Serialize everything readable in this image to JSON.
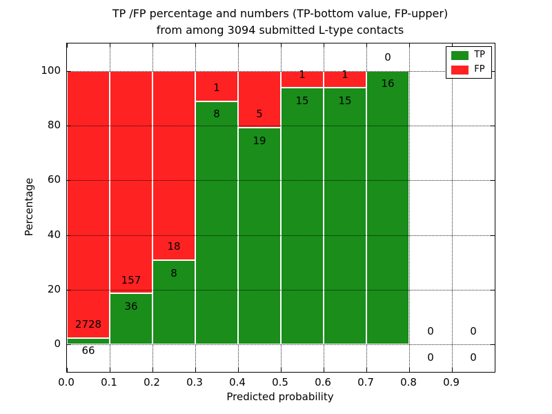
{
  "chart_data": {
    "type": "bar",
    "stacked": true,
    "title_lines": [
      "TP /FP percentage and numbers (TP-bottom value, FP-upper)",
      "from among 3094 submitted L-type contacts"
    ],
    "total_submitted": 3094,
    "xlabel": "Predicted probability",
    "ylabel": "Percentage",
    "bins": [
      0.0,
      0.1,
      0.2,
      0.3,
      0.4,
      0.5,
      0.6,
      0.7,
      0.8,
      0.9
    ],
    "bin_width": 0.1,
    "series": [
      {
        "name": "TP",
        "color": "#1a8d1a",
        "values": [
          66,
          36,
          8,
          8,
          19,
          15,
          15,
          16,
          0,
          0
        ]
      },
      {
        "name": "FP",
        "color": "#ff2222",
        "values": [
          2728,
          157,
          18,
          1,
          5,
          1,
          1,
          0,
          0,
          0
        ]
      }
    ],
    "value_unit": "percent of bin (TP+FP stacked to 100%)",
    "tp_percent": [
      2.36,
      18.65,
      30.77,
      88.89,
      79.17,
      93.75,
      93.75,
      100.0,
      0.0,
      0.0
    ],
    "xlim": [
      0.0,
      1.0
    ],
    "ylim": [
      -10,
      110
    ],
    "xticks": [
      0.0,
      0.1,
      0.2,
      0.3,
      0.4,
      0.5,
      0.6,
      0.7,
      0.8,
      0.9
    ],
    "xtick_labels": [
      "0.0",
      "0.1",
      "0.2",
      "0.3",
      "0.4",
      "0.5",
      "0.6",
      "0.7",
      "0.8",
      "0.9"
    ],
    "yticks": [
      0,
      20,
      40,
      60,
      80,
      100
    ],
    "ytick_labels": [
      "0",
      "20",
      "40",
      "60",
      "80",
      "100"
    ],
    "grid": "dotted both axes",
    "legend_position": "upper right",
    "legend": [
      "TP",
      "FP"
    ]
  }
}
